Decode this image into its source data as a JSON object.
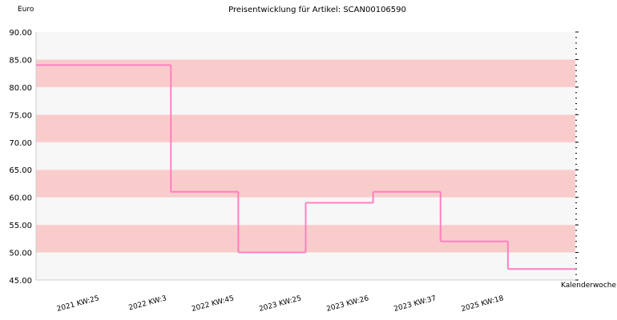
{
  "chart_data": {
    "type": "step",
    "title": "Preisentwicklung für Artikel: SCAN00106590",
    "y_label": "Euro",
    "x_label": "Kalenderwoche",
    "categories": [
      "2021 KW:25",
      "2022 KW:3",
      "2022 KW:45",
      "2023 KW:25",
      "2023 KW:26",
      "2023 KW:37",
      "2025 KW:18"
    ],
    "values": [
      84,
      61,
      50,
      59,
      61,
      52,
      47
    ],
    "color": "#ff80c0",
    "band_colors": [
      "#f7f7f7",
      "#f9cccc"
    ],
    "ylim": [
      45,
      90
    ],
    "yticks": [
      {
        "value": 45,
        "label": "45.00"
      },
      {
        "value": 50,
        "label": "50.00"
      },
      {
        "value": 55,
        "label": "55.00"
      },
      {
        "value": 60,
        "label": "60.00"
      },
      {
        "value": 65,
        "label": "65.00"
      },
      {
        "value": 70,
        "label": "70.00"
      },
      {
        "value": 75,
        "label": "75.00"
      },
      {
        "value": 80,
        "label": "80.00"
      },
      {
        "value": 85,
        "label": "85.00"
      },
      {
        "value": 90,
        "label": "90.00"
      }
    ]
  }
}
